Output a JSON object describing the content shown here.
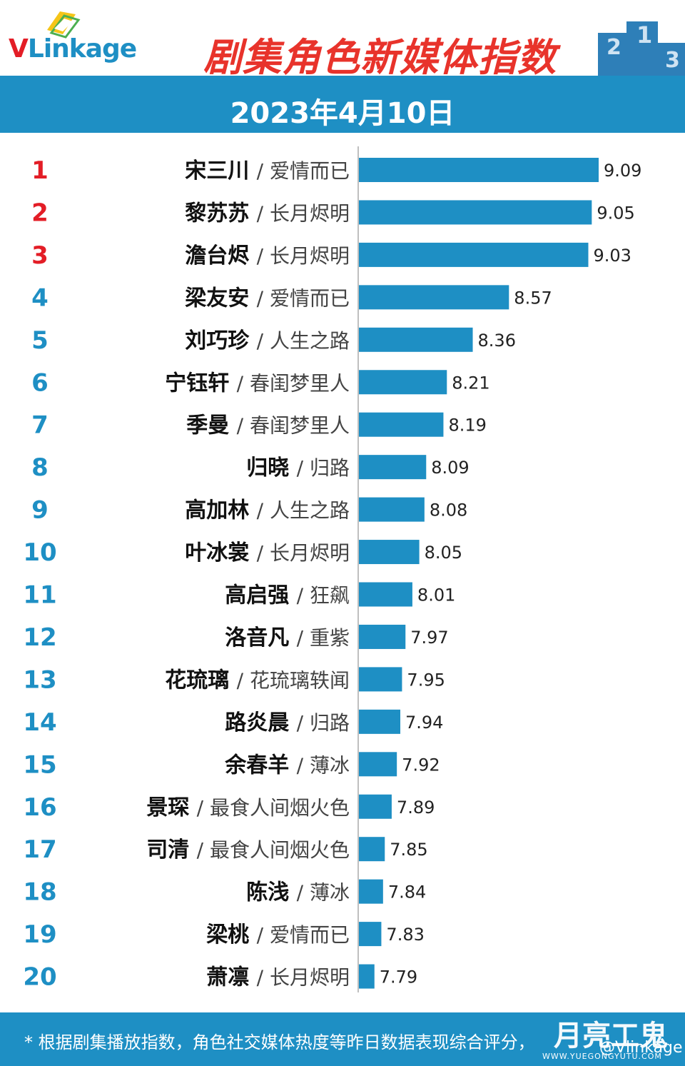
{
  "header": {
    "logo_text": "VLinkage",
    "title": "剧集角色新媒体指数",
    "date": "2023年4月10日",
    "podium_numbers": [
      "2",
      "1",
      "3"
    ]
  },
  "footer": {
    "note": "* 根据剧集播放指数，角色社交媒体热度等昨日数据表现综合评分，",
    "watermark": "月亮工鬼",
    "watermark_handle": "@Vlinkage",
    "watermark_url": "WWW.YUEGONGYUTU.COM"
  },
  "colors": {
    "accent": "#1e8fc4",
    "title_red": "#e8332b",
    "rank_red": "#e31d26",
    "bar": "#1e8fc4"
  },
  "chart_data": {
    "type": "bar",
    "orientation": "horizontal",
    "ranks": [
      "1",
      "2",
      "3",
      "4",
      "5",
      "6",
      "7",
      "8",
      "9",
      "10",
      "11",
      "12",
      "13",
      "14",
      "15",
      "16",
      "17",
      "18",
      "19",
      "20"
    ],
    "characters": [
      "宋三川",
      "黎苏苏",
      "澹台烬",
      "梁友安",
      "刘巧珍",
      "宁钰轩",
      "季曼",
      "归晓",
      "高加林",
      "叶冰裳",
      "高启强",
      "洛音凡",
      "花琉璃",
      "路炎晨",
      "余春羊",
      "景琛",
      "司清",
      "陈浅",
      "梁桃",
      "萧凛"
    ],
    "dramas": [
      "/ 爱情而已",
      "/ 长月烬明",
      "/ 长月烬明",
      "/ 爱情而已",
      "/ 人生之路",
      "/ 春闺梦里人",
      "/ 春闺梦里人",
      "/ 归路",
      "/ 人生之路",
      "/ 长月烬明",
      "/ 狂飙",
      "/ 重紫",
      "/ 花琉璃轶闻",
      "/ 归路",
      "/ 薄冰",
      "/ 最食人间烟火色",
      "/ 最食人间烟火色",
      "/ 薄冰",
      "/ 爱情而已",
      "/ 长月烬明"
    ],
    "values": [
      9.09,
      9.05,
      9.03,
      8.57,
      8.36,
      8.21,
      8.19,
      8.09,
      8.08,
      8.05,
      8.01,
      7.97,
      7.95,
      7.94,
      7.92,
      7.89,
      7.85,
      7.84,
      7.83,
      7.79
    ],
    "value_labels": [
      "9.09",
      "9.05",
      "9.03",
      "8.57",
      "8.36",
      "8.21",
      "8.19",
      "8.09",
      "8.08",
      "8.05",
      "8.01",
      "7.97",
      "7.95",
      "7.94",
      "7.92",
      "7.89",
      "7.85",
      "7.84",
      "7.83",
      "7.79"
    ],
    "top_ranks_highlighted": 3,
    "xlim": [
      7.7,
      9.1
    ],
    "grid": false,
    "legend": "none"
  }
}
